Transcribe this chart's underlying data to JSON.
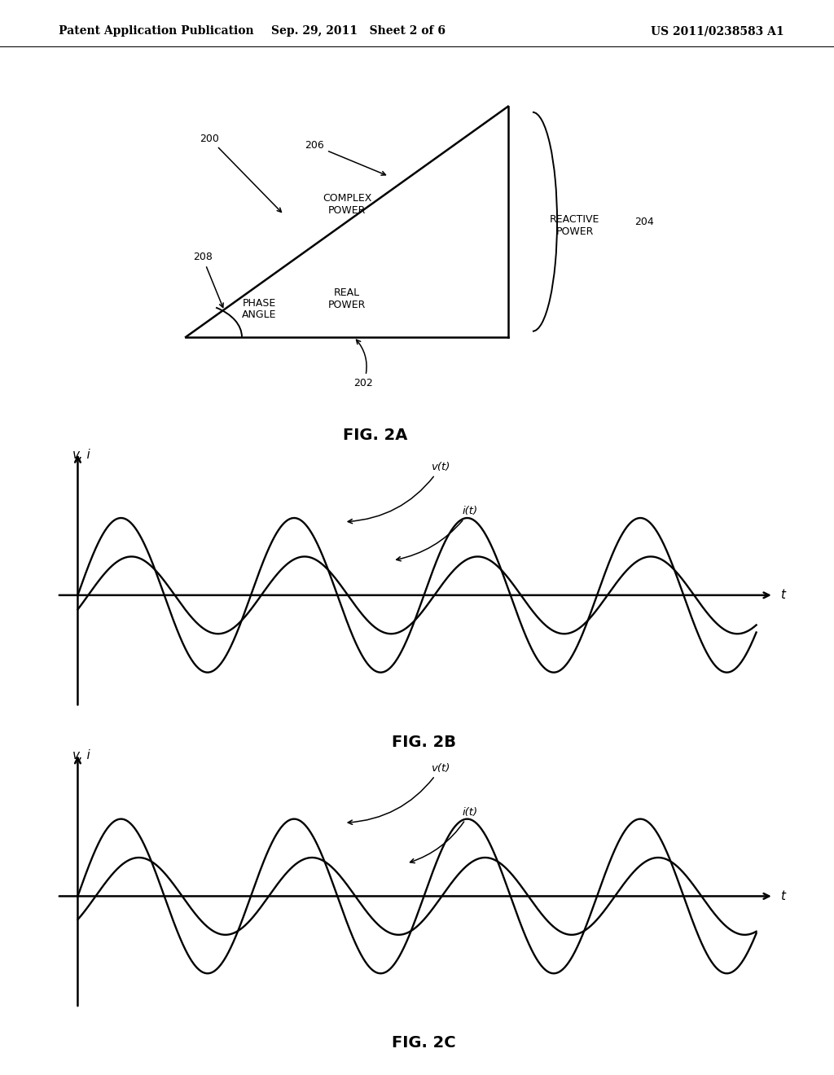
{
  "bg_color": "#ffffff",
  "header_left": "Patent Application Publication",
  "header_mid": "Sep. 29, 2011   Sheet 2 of 6",
  "header_right": "US 2011/0238583 A1",
  "fig2a_label": "FIG. 2A",
  "fig2b_label": "FIG. 2B",
  "fig2c_label": "FIG. 2C",
  "wave_period": 2.5,
  "wave_amp_v": 1.0,
  "wave_amp_i_b": 0.5,
  "wave_amp_i_c": 0.5,
  "wave_phase_shift_b": 0.38,
  "wave_phase_shift_c": 0.65,
  "header_fontsize": 10,
  "label_fontsize": 9,
  "caption_fontsize": 14,
  "axis_label_fontsize": 11
}
